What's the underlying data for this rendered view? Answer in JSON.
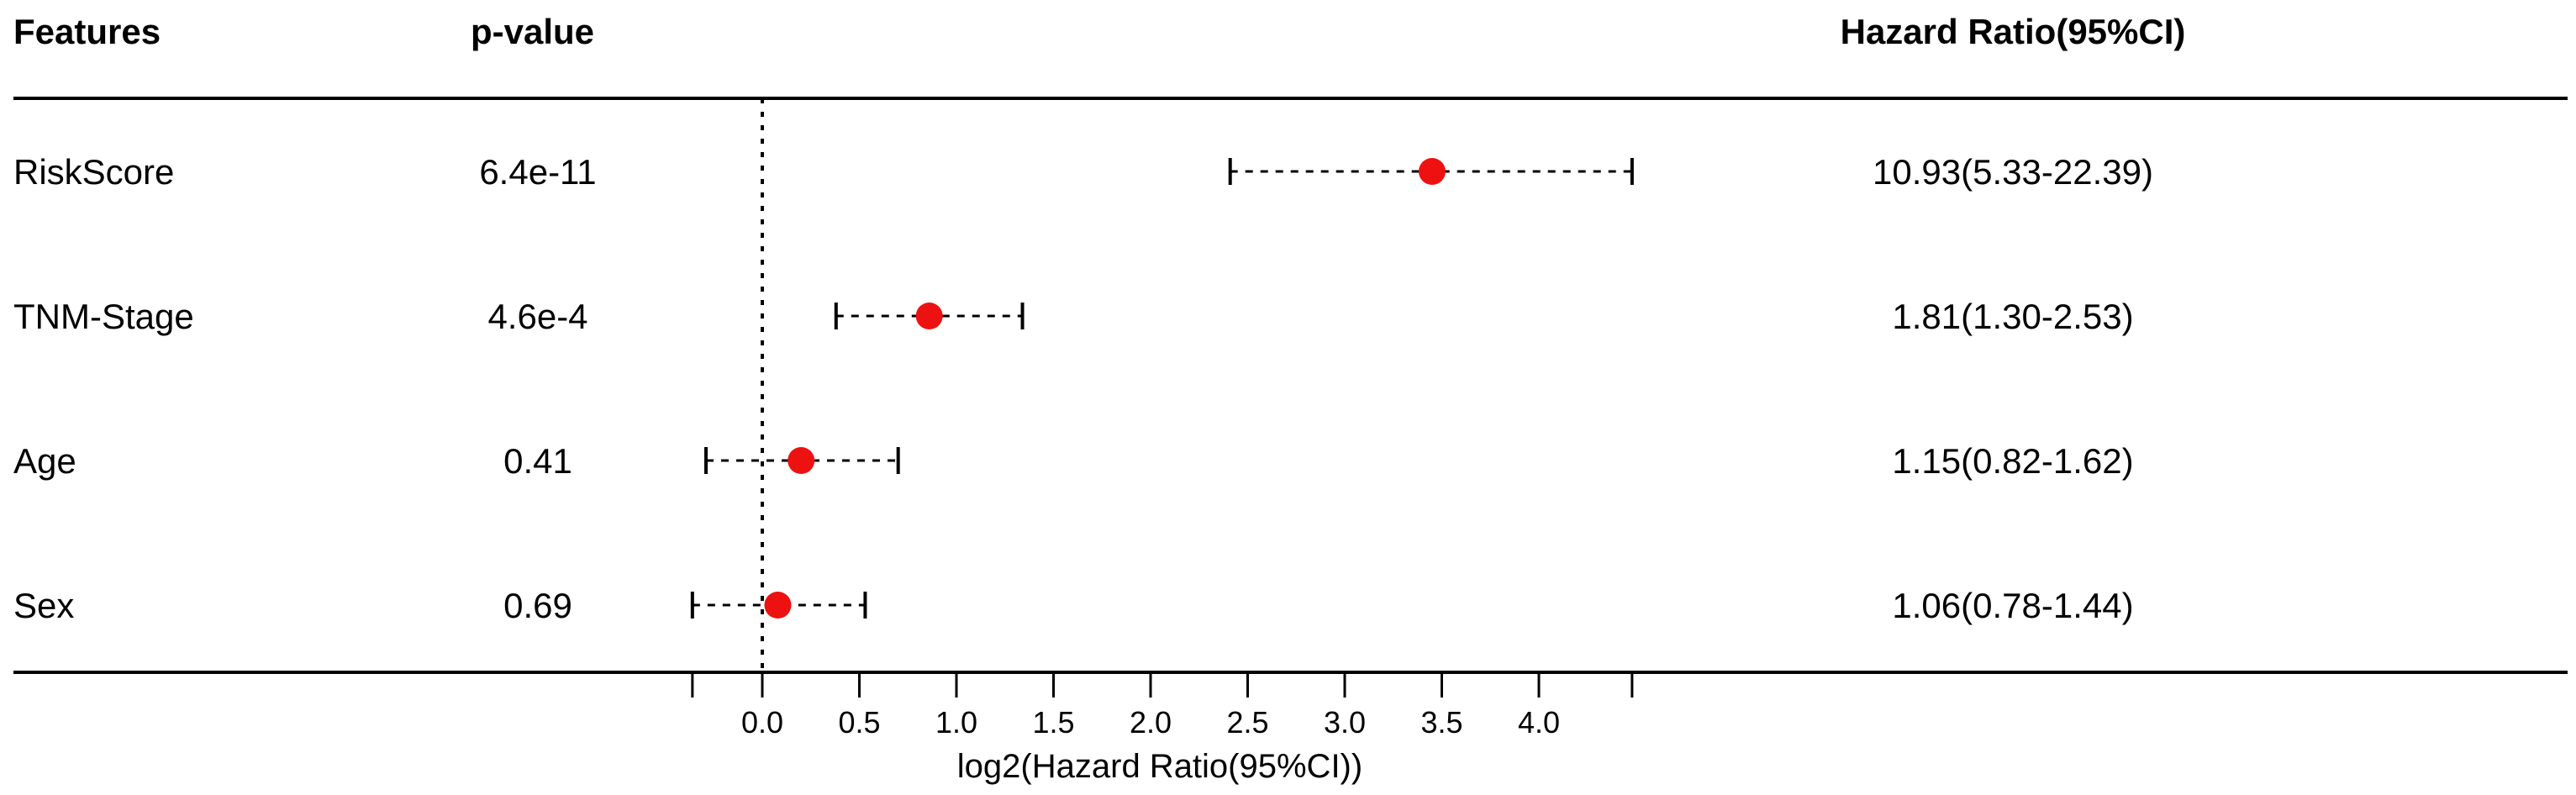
{
  "headers": {
    "features": "Features",
    "pvalue": "p-value",
    "hr": "Hazard Ratio(95%CI)"
  },
  "chart_data": {
    "type": "forest",
    "xlabel": "log2(Hazard Ratio(95%CI))",
    "xticks": [
      0.0,
      0.5,
      1.0,
      1.5,
      2.0,
      2.5,
      3.0,
      3.5,
      4.0
    ],
    "xtick_labels": [
      "0.0",
      "0.5",
      "1.0",
      "1.5",
      "2.0",
      "2.5",
      "3.0",
      "3.5",
      "4.0"
    ],
    "xlim": [
      -0.17,
      4.5
    ],
    "reference_line": 0,
    "point_color": "#ee1111",
    "rows": [
      {
        "feature": "RiskScore",
        "pvalue": "6.4e-11",
        "hr_text": "10.93(5.33-22.39)",
        "log2hr": 3.45,
        "lower": 2.41,
        "upper": 4.48
      },
      {
        "feature": "TNM-Stage",
        "pvalue": "4.6e-4",
        "hr_text": "1.81(1.30-2.53)",
        "log2hr": 0.86,
        "lower": 0.38,
        "upper": 1.34
      },
      {
        "feature": "Age",
        "pvalue": "0.41",
        "hr_text": "1.15(0.82-1.62)",
        "log2hr": 0.2,
        "lower": -0.29,
        "upper": 0.7
      },
      {
        "feature": "Sex",
        "pvalue": "0.69",
        "hr_text": "1.06(0.78-1.44)",
        "log2hr": 0.08,
        "lower": -0.36,
        "upper": 0.53
      }
    ]
  }
}
